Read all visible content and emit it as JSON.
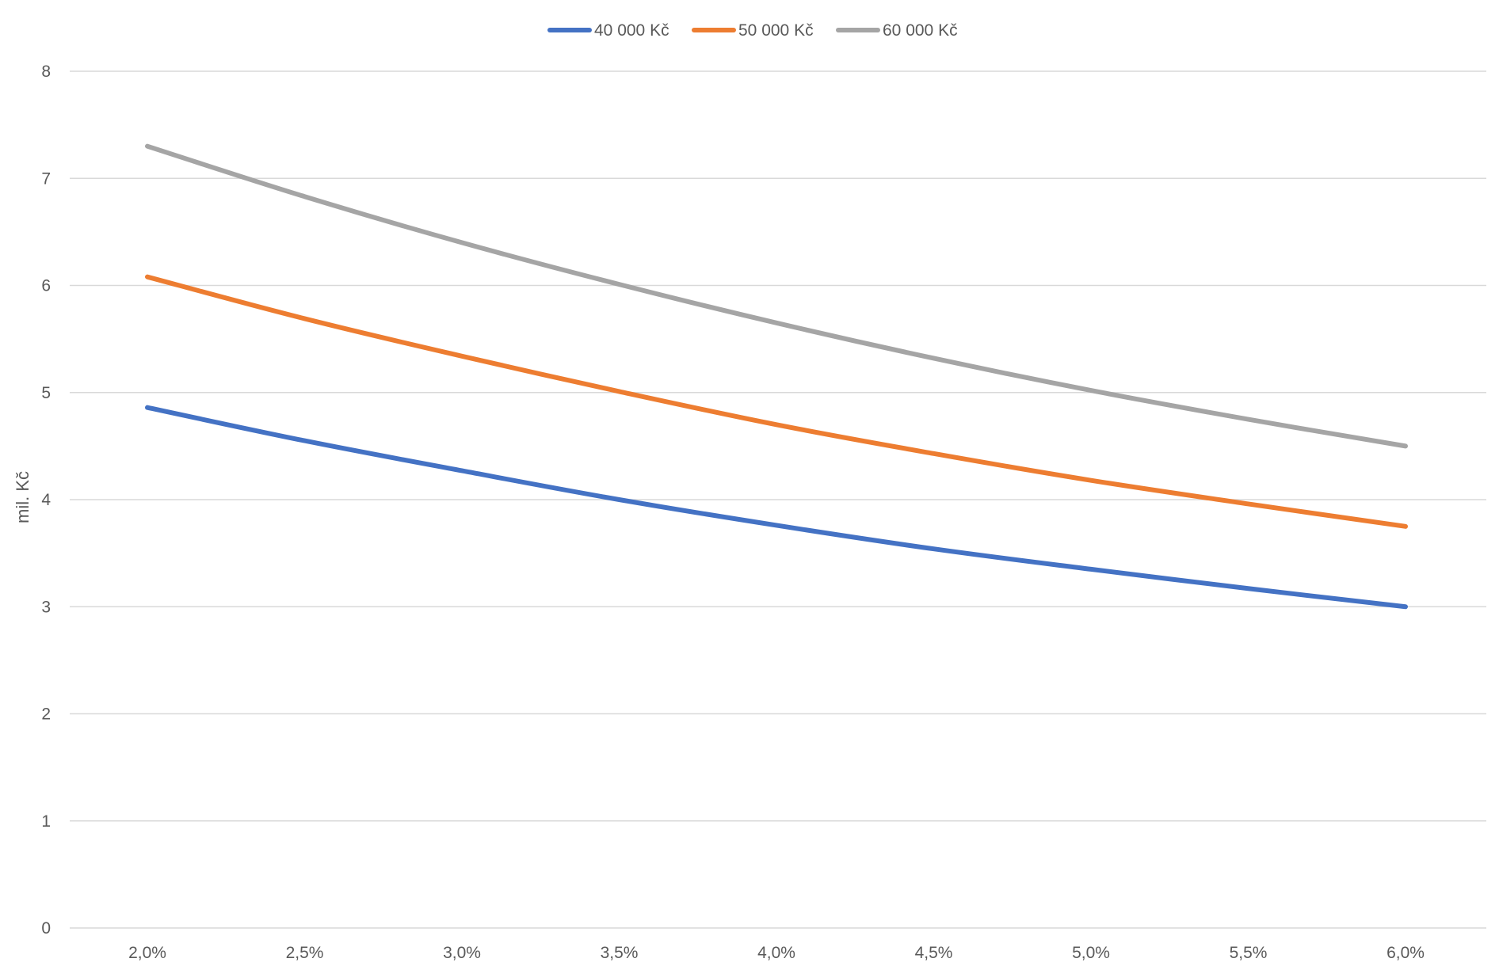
{
  "chart_data": {
    "type": "line",
    "title": "",
    "xlabel": "",
    "ylabel": "mil. Kč",
    "categories": [
      "2,0%",
      "2,5%",
      "3,0%",
      "3,5%",
      "4,0%",
      "4,5%",
      "5,0%",
      "5,5%",
      "6,0%"
    ],
    "ylim": [
      0,
      8
    ],
    "yticks": [
      "0",
      "1",
      "2",
      "3",
      "4",
      "5",
      "6",
      "7",
      "8"
    ],
    "grid": true,
    "legend_position": "top",
    "series": [
      {
        "name": "40 000 Kč",
        "color": "#4472C4",
        "values": [
          4.86,
          4.55,
          4.27,
          4.0,
          3.76,
          3.54,
          3.35,
          3.17,
          3.0
        ]
      },
      {
        "name": "50 000 Kč",
        "color": "#ED7D31",
        "values": [
          6.08,
          5.69,
          5.34,
          5.01,
          4.7,
          4.43,
          4.18,
          3.96,
          3.75
        ]
      },
      {
        "name": "60 000 Kč",
        "color": "#A5A5A5",
        "values": [
          7.3,
          6.83,
          6.4,
          6.01,
          5.65,
          5.32,
          5.02,
          4.75,
          4.5
        ]
      }
    ]
  }
}
